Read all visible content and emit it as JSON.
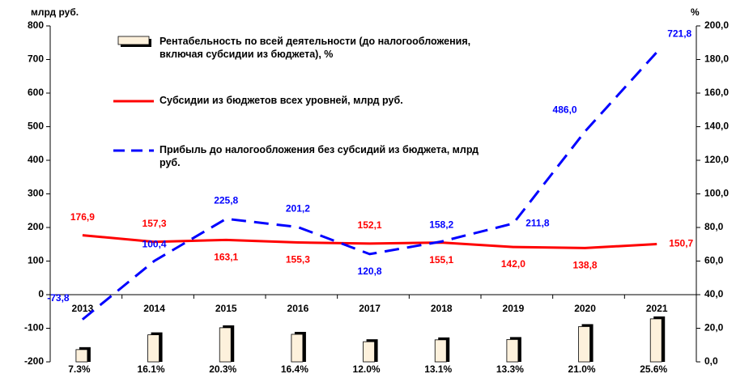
{
  "chart_data": {
    "type": "bar-line",
    "y_axis_label": "млрд руб.",
    "y2_axis_label": "%",
    "categories": [
      "2013",
      "2014",
      "2015",
      "2016",
      "2017",
      "2018",
      "2019",
      "2020",
      "2021"
    ],
    "ylim": [
      -200,
      800
    ],
    "yticks": [
      -200,
      -100,
      0,
      100,
      200,
      300,
      400,
      500,
      600,
      700,
      800
    ],
    "y2lim": [
      0,
      200
    ],
    "y2ticks": [
      {
        "value": 0,
        "label": "0,0"
      },
      {
        "value": 20,
        "label": "20,0"
      },
      {
        "value": 40,
        "label": "40,0"
      },
      {
        "value": 60,
        "label": "60,0"
      },
      {
        "value": 80,
        "label": "80,0"
      },
      {
        "value": 100,
        "label": "100,0"
      },
      {
        "value": 120,
        "label": "120,0"
      },
      {
        "value": 140,
        "label": "140,0"
      },
      {
        "value": 160,
        "label": "160,0"
      },
      {
        "value": 180,
        "label": "180,0"
      },
      {
        "value": 200,
        "label": "200,0"
      }
    ],
    "series": [
      {
        "name": "Рентабельность по всей деятельности (до налогообложения, включая субсидии из бюджета), %",
        "type": "bar",
        "axis": "y2",
        "color": "#fdf1dc",
        "values": [
          7.3,
          16.1,
          20.3,
          16.4,
          12.0,
          13.1,
          13.3,
          21.0,
          25.6
        ],
        "value_labels": [
          "7.3%",
          "16.1%",
          "20.3%",
          "16.4%",
          "12.0%",
          "13.1%",
          "13.3%",
          "21.0%",
          "25.6%"
        ]
      },
      {
        "name": "Субсидии из бюджетов всех уровней, млрд руб.",
        "type": "line",
        "color": "#ff0000",
        "values": [
          176.9,
          157.3,
          163.1,
          155.3,
          152.1,
          155.1,
          142.0,
          138.8,
          150.7
        ],
        "value_labels": [
          "176,9",
          "157,3",
          "163,1",
          "155,3",
          "152,1",
          "155,1",
          "142,0",
          "138,8",
          "150,7"
        ]
      },
      {
        "name": "Прибыль до налогообложения без субсидий из бюджета, млрд руб.",
        "type": "line",
        "dashed": true,
        "color": "#0000ff",
        "values": [
          -73.8,
          100.4,
          225.8,
          201.2,
          120.8,
          158.2,
          211.8,
          486.0,
          721.8
        ],
        "value_labels": [
          "-73,8",
          "100,4",
          "225,8",
          "201,2",
          "120,8",
          "158,2",
          "211,8",
          "486,0",
          "721,8"
        ]
      }
    ]
  }
}
